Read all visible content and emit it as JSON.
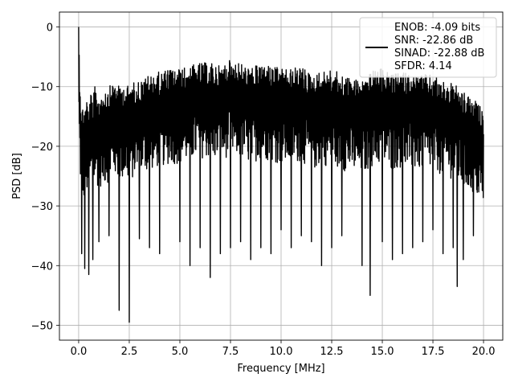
{
  "chart_data": {
    "type": "line",
    "title": "",
    "xlabel": "Frequency [MHz]",
    "ylabel": "PSD [dB]",
    "xlim": [
      -0.95,
      20.95
    ],
    "ylim": [
      -52.5,
      2.5
    ],
    "xticks": [
      0.0,
      2.5,
      5.0,
      7.5,
      10.0,
      12.5,
      15.0,
      17.5,
      20.0
    ],
    "xtick_labels": [
      "0.0",
      "2.5",
      "5.0",
      "7.5",
      "10.0",
      "12.5",
      "15.0",
      "17.5",
      "20.0"
    ],
    "yticks": [
      0,
      -10,
      -20,
      -30,
      -40,
      -50
    ],
    "ytick_labels": [
      "0",
      "−10",
      "−20",
      "−30",
      "−40",
      "−50"
    ],
    "grid": true,
    "legend_position": "top-right",
    "series": [
      {
        "color": "#000000",
        "x": [
          0.0,
          0.05,
          0.1,
          0.15,
          0.2,
          0.3,
          0.4,
          0.5,
          0.6,
          0.7,
          0.8,
          1.0,
          1.2,
          1.5,
          1.8,
          2.0,
          2.3,
          2.5,
          2.8,
          3.0,
          3.5,
          4.0,
          4.5,
          5.0,
          5.5,
          6.0,
          6.5,
          7.0,
          7.5,
          8.0,
          8.5,
          9.0,
          9.5,
          10.0,
          10.5,
          11.0,
          11.5,
          12.0,
          12.5,
          13.0,
          13.5,
          14.0,
          14.4,
          15.0,
          15.5,
          16.0,
          16.5,
          17.0,
          17.5,
          18.0,
          18.5,
          18.7,
          19.0,
          19.5,
          20.0
        ],
        "y": [
          0.0,
          -17.0,
          -28.0,
          -38.0,
          -30.0,
          -40.5,
          -25.0,
          -41.5,
          -27.0,
          -39.0,
          -24.0,
          -36.0,
          -26.0,
          -35.0,
          -30.0,
          -47.5,
          -28.0,
          -49.5,
          -33.0,
          -35.5,
          -37.0,
          -38.0,
          -33.0,
          -36.0,
          -40.0,
          -37.0,
          -42.0,
          -38.0,
          -37.0,
          -36.0,
          -39.0,
          -37.0,
          -38.0,
          -34.0,
          -37.0,
          -35.0,
          -36.0,
          -40.0,
          -37.0,
          -35.0,
          -33.0,
          -40.0,
          -45.0,
          -36.0,
          -39.0,
          -38.0,
          -37.0,
          -36.0,
          -34.0,
          -38.0,
          -37.0,
          -43.5,
          -39.0,
          -35.0,
          -28.0
        ],
        "upper_envelope": [
          0.0,
          -7.0,
          -11.0,
          -14.0,
          -13.0,
          -13.0,
          -12.0,
          -12.5,
          -11.0,
          -12.0,
          -10.0,
          -11.0,
          -10.5,
          -10.0,
          -9.0,
          -10.0,
          -9.5,
          -10.0,
          -9.0,
          -9.0,
          -8.0,
          -7.5,
          -7.0,
          -7.0,
          -6.5,
          -6.0,
          -6.0,
          -6.5,
          -5.5,
          -6.0,
          -7.0,
          -6.0,
          -6.5,
          -7.0,
          -7.0,
          -6.5,
          -8.0,
          -7.5,
          -7.0,
          -8.0,
          -8.5,
          -9.0,
          -7.5,
          -7.0,
          -8.0,
          -7.5,
          -8.0,
          -8.0,
          -8.0,
          -9.0,
          -9.5,
          -10.0,
          -11.0,
          -12.0,
          -14.0
        ]
      }
    ],
    "legend": {
      "lines": [
        "ENOB: -4.09 bits",
        "SNR: -22.86 dB",
        "SINAD: -22.88 dB",
        "SFDR: 4.14"
      ]
    }
  }
}
